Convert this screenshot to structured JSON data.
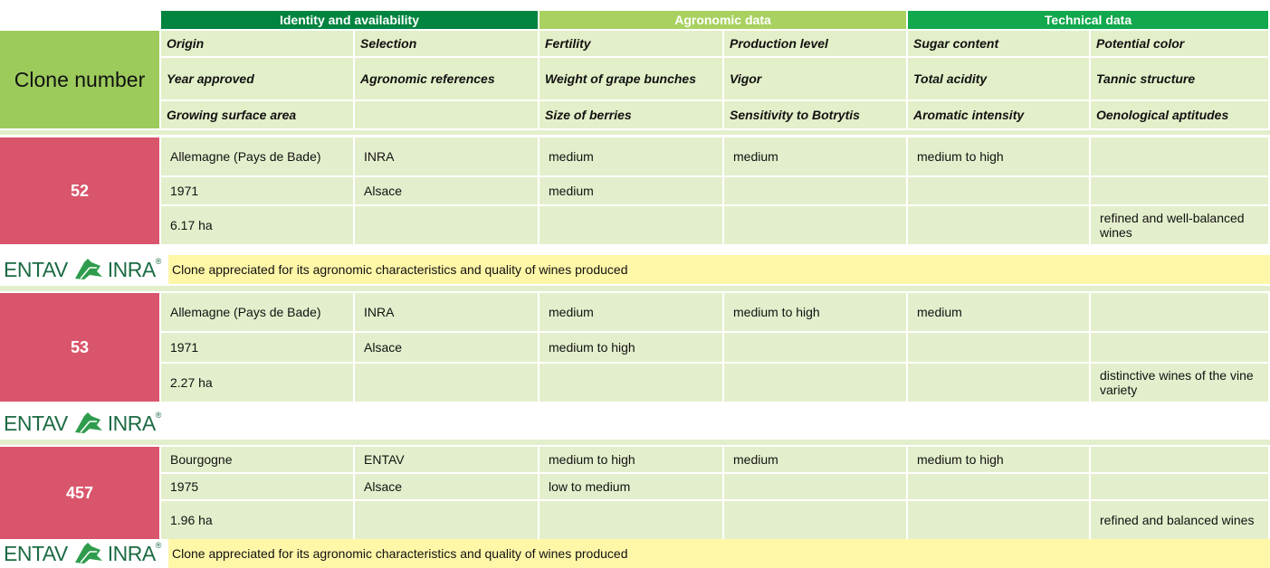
{
  "header": {
    "row_label": "Clone number",
    "groups": [
      "Identity and availability",
      "Agronomic data",
      "Technical data"
    ],
    "columns": [
      [
        "Origin",
        "Selection",
        "Fertility",
        "Production level",
        "Sugar content",
        "Potential color"
      ],
      [
        "Year approved",
        "Agronomic references",
        "Weight of grape bunches",
        "Vigor",
        "Total acidity",
        "Tannic structure"
      ],
      [
        "Growing surface area",
        null,
        "Size of berries",
        "Sensitivity to Botrytis",
        "Aromatic intensity",
        "Oenological aptitudes"
      ]
    ]
  },
  "logo": {
    "left": "ENTAV",
    "right": "INRA",
    "mark": "®"
  },
  "clones": [
    {
      "number": "52",
      "rows": [
        [
          "Allemagne (Pays de Bade)",
          "INRA",
          "medium",
          "medium",
          "medium to high",
          null
        ],
        [
          "1971",
          "Alsace",
          "medium",
          null,
          null,
          null
        ],
        [
          "6.17 ha",
          null,
          null,
          null,
          null,
          "refined and well-balanced wines"
        ]
      ],
      "note": "Clone appreciated for its agronomic characteristics and quality of wines produced"
    },
    {
      "number": "53",
      "rows": [
        [
          "Allemagne (Pays de Bade)",
          "INRA",
          "medium",
          "medium to high",
          "medium",
          null
        ],
        [
          "1971",
          "Alsace",
          "medium to high",
          null,
          null,
          null
        ],
        [
          "2.27 ha",
          null,
          null,
          null,
          null,
          "distinctive wines of the vine variety"
        ]
      ]
    },
    {
      "number": "457",
      "rows": [
        [
          "Bourgogne",
          "ENTAV",
          "medium to high",
          "medium",
          "medium to high",
          null
        ],
        [
          "1975",
          "Alsace",
          "low to medium",
          null,
          null,
          null
        ],
        [
          "1.96 ha",
          null,
          null,
          null,
          null,
          "refined and balanced wines"
        ]
      ],
      "note": "Clone appreciated for its agronomic characteristics and quality of wines produced"
    }
  ]
}
